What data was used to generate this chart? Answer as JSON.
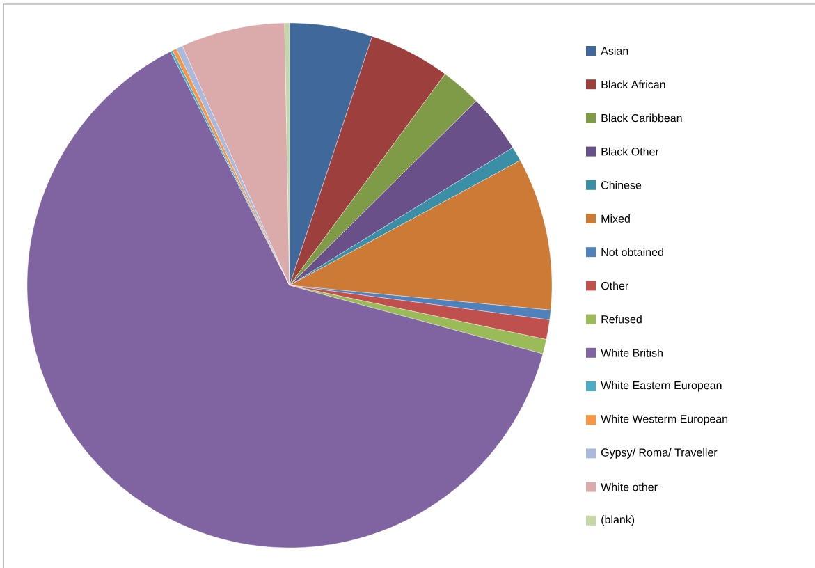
{
  "chart_data": {
    "type": "pie",
    "legend": "right",
    "categories": [
      "Asian",
      "Black African",
      "Black Caribbean",
      "Black Other",
      "Chinese",
      "Mixed",
      "Not obtained",
      "Other",
      "Refused",
      "White British",
      "White Eastern European",
      "White Westerm European",
      "Gypsy/ Roma/ Traveller",
      "White other",
      "(blank)"
    ],
    "values": [
      5.1,
      5.0,
      2.5,
      3.6,
      0.9,
      9.4,
      0.6,
      1.2,
      0.9,
      63.3,
      0.15,
      0.25,
      0.4,
      6.4,
      0.3
    ],
    "colors": [
      "#41689a",
      "#9c3f3d",
      "#809b48",
      "#6a5088",
      "#3a8fa6",
      "#cc7a36",
      "#4f81bd",
      "#c0504d",
      "#9bbb59",
      "#8064a2",
      "#4bacc6",
      "#f79646",
      "#a9badc",
      "#dbaaaa",
      "#c4d7a5"
    ]
  }
}
